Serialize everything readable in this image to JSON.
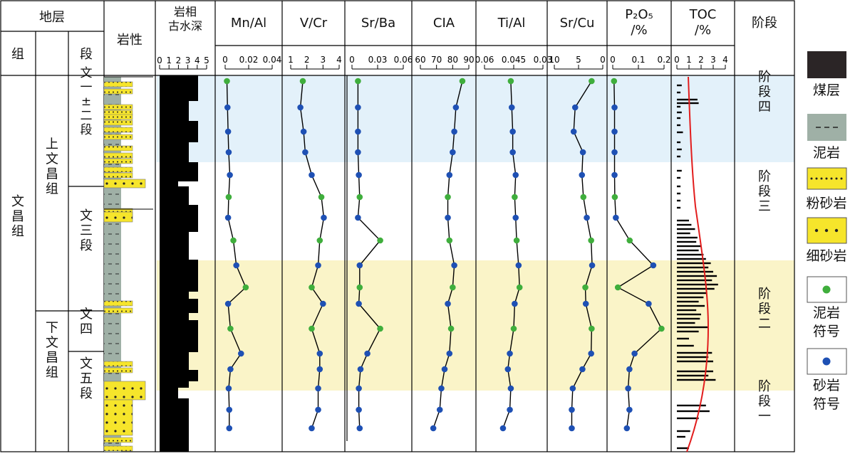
{
  "headers": {
    "stratum": "地层",
    "formation": "组",
    "member": "段",
    "lithology": "岩性",
    "facies": [
      "岩相",
      "古水深"
    ],
    "stage": "阶段"
  },
  "formation_label": "文昌组",
  "subformations": [
    "上文昌组",
    "下文昌组"
  ],
  "members": [
    "文一±二段",
    "文三段",
    "文四",
    "文五段"
  ],
  "stages": [
    "阶段四",
    "阶段三",
    "阶段二",
    "阶段一"
  ],
  "stage_colors": {
    "blue": "#e3f1fa",
    "yellow": "#faf4c8"
  },
  "facies_axis": {
    "ticks": [
      "0",
      "1",
      "2",
      "3",
      "4",
      "5"
    ]
  },
  "marker_colors": {
    "mudstone": "#3fae3c",
    "sandstone": "#1e50b4"
  },
  "legend": [
    {
      "label": "煤层",
      "swatch": "coal"
    },
    {
      "label": "泥岩",
      "swatch": "mudstone"
    },
    {
      "label": "粉砂岩",
      "swatch": "siltstone"
    },
    {
      "label": "细砂岩",
      "swatch": "finesand"
    },
    {
      "label": "泥岩符号",
      "swatch": "green-dot"
    },
    {
      "label": "砂岩符号",
      "swatch": "blue-dot"
    }
  ],
  "chart_data": {
    "type": "scatter",
    "samples": [
      "s1",
      "s2",
      "s3",
      "s4",
      "s5",
      "s6",
      "s7",
      "s8",
      "s9",
      "s10",
      "s11",
      "s12",
      "s13",
      "s14",
      "s15",
      "s16",
      "s17"
    ],
    "lithology_per_sample": [
      "mud",
      "sand",
      "sand",
      "sand",
      "sand",
      "mud",
      "sand",
      "mud",
      "sand",
      "mud",
      "sand",
      "mud",
      "sand",
      "sand",
      "sand",
      "sand",
      "sand"
    ],
    "panels": [
      {
        "title": "Mn/Al",
        "ticks": [
          "0",
          "0.02",
          "0.04"
        ],
        "range": [
          0,
          0.04
        ],
        "values": [
          0.0015,
          0.002,
          0.0025,
          0.003,
          0.004,
          0.003,
          0.0025,
          0.007,
          0.0095,
          0.0175,
          0.0025,
          0.0045,
          0.0135,
          0.0045,
          0.003,
          0.0035,
          0.0035
        ]
      },
      {
        "title": "V/Cr",
        "ticks": [
          "1",
          "2",
          "3",
          "4"
        ],
        "range": [
          1,
          4
        ],
        "values": [
          1.75,
          1.6,
          1.8,
          1.9,
          2.3,
          2.9,
          3.05,
          2.8,
          2.7,
          2.3,
          3.0,
          2.3,
          2.8,
          2.8,
          2.7,
          2.7,
          2.3
        ]
      },
      {
        "title": "Sr/Ba",
        "ticks": [
          "0",
          "0.03",
          "0.06"
        ],
        "range": [
          0,
          0.06
        ],
        "values": [
          0.007,
          0.007,
          0.007,
          0.007,
          0.008,
          0.009,
          0.007,
          0.033,
          0.009,
          0.009,
          0.008,
          0.033,
          0.018,
          0.01,
          0.008,
          0.008,
          0.009
        ]
      },
      {
        "title": "CIA",
        "ticks": [
          "60",
          "70",
          "80",
          "90"
        ],
        "range": [
          60,
          90
        ],
        "values": [
          86,
          82,
          81,
          80,
          78,
          77,
          77,
          78,
          81,
          80,
          77,
          79,
          78,
          75,
          73,
          72,
          68
        ]
      },
      {
        "title": "Ti/Al",
        "ticks": [
          "0.06",
          "0.045",
          "0.03"
        ],
        "range": [
          0.06,
          0.03
        ],
        "values": [
          0.0465,
          0.046,
          0.0455,
          0.0455,
          0.044,
          0.0445,
          0.044,
          0.0435,
          0.0425,
          0.042,
          0.0445,
          0.045,
          0.047,
          0.048,
          0.0465,
          0.047,
          0.0505
        ]
      },
      {
        "title": "Sr/Cu",
        "ticks": [
          "10",
          "5",
          "0"
        ],
        "range": [
          10,
          0
        ],
        "values": [
          2.3,
          5.7,
          6.0,
          4.1,
          4.3,
          4.0,
          3.3,
          2.4,
          2.2,
          3.6,
          3.5,
          2.3,
          2.4,
          4.2,
          6.2,
          6.4,
          6.4
        ]
      },
      {
        "title": [
          "P₂O₅",
          "/%"
        ],
        "ticks": [
          "0",
          "0.1",
          "0.2"
        ],
        "range": [
          0,
          0.2
        ],
        "values": [
          0.005,
          0.007,
          0.007,
          0.007,
          0.007,
          0.008,
          0.012,
          0.066,
          0.158,
          0.02,
          0.14,
          0.19,
          0.085,
          0.065,
          0.06,
          0.065,
          0.055
        ]
      },
      {
        "title": [
          "TOC",
          "/%"
        ],
        "ticks": [
          "0",
          "1",
          "2",
          "3",
          "4"
        ],
        "range": [
          0,
          4
        ]
      }
    ]
  }
}
